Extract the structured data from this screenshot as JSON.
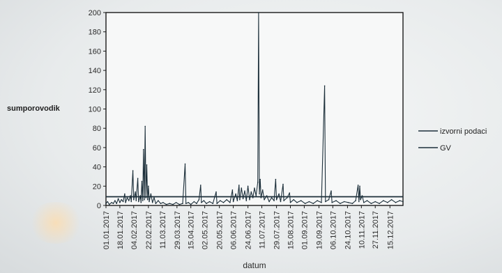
{
  "chart_data": {
    "type": "line",
    "xlabel": "datum",
    "ylabel": "sumporovodik",
    "ylim": [
      0,
      200
    ],
    "yticks": [
      0,
      20,
      40,
      60,
      80,
      100,
      120,
      140,
      160,
      180,
      200
    ],
    "xlim": [
      "2017-01-01",
      "2017-12-31"
    ],
    "x_tick_labels": [
      "01.01.2017",
      "18.01.2017",
      "04.02.2017",
      "22.02.2017",
      "11.03.2017",
      "29.03.2017",
      "15.04.2017",
      "02.05.2017",
      "20.05.2017",
      "06.06.2017",
      "24.06.2017",
      "11.07.2017",
      "29.07.2017",
      "15.08.2017",
      "01.09.2017",
      "19.09.2017",
      "06.10.2017",
      "24.10.2017",
      "10.11.2017",
      "27.11.2017",
      "15.12.2017"
    ],
    "x_tick_dates": [
      "2017-01-01",
      "2017-01-18",
      "2017-02-04",
      "2017-02-22",
      "2017-03-11",
      "2017-03-29",
      "2017-04-15",
      "2017-05-02",
      "2017-05-20",
      "2017-06-06",
      "2017-06-24",
      "2017-07-11",
      "2017-07-29",
      "2017-08-15",
      "2017-09-01",
      "2017-09-19",
      "2017-10-06",
      "2017-10-24",
      "2017-11-10",
      "2017-11-27",
      "2017-12-15"
    ],
    "legend_position": "right",
    "series": [
      {
        "name": "izvorni podaci",
        "color": "#1c2f3a",
        "points": [
          [
            "2017-01-01",
            2
          ],
          [
            "2017-01-03",
            4
          ],
          [
            "2017-01-05",
            1
          ],
          [
            "2017-01-08",
            3
          ],
          [
            "2017-01-10",
            2
          ],
          [
            "2017-01-12",
            5
          ],
          [
            "2017-01-14",
            2
          ],
          [
            "2017-01-16",
            7
          ],
          [
            "2017-01-18",
            3
          ],
          [
            "2017-01-20",
            6
          ],
          [
            "2017-01-22",
            4
          ],
          [
            "2017-01-24",
            12
          ],
          [
            "2017-01-25",
            3
          ],
          [
            "2017-01-27",
            8
          ],
          [
            "2017-01-29",
            5
          ],
          [
            "2017-01-31",
            10
          ],
          [
            "2017-02-01",
            4
          ],
          [
            "2017-02-03",
            36
          ],
          [
            "2017-02-04",
            6
          ],
          [
            "2017-02-06",
            14
          ],
          [
            "2017-02-07",
            5
          ],
          [
            "2017-02-09",
            28
          ],
          [
            "2017-02-10",
            4
          ],
          [
            "2017-02-12",
            10
          ],
          [
            "2017-02-13",
            3
          ],
          [
            "2017-02-14",
            25
          ],
          [
            "2017-02-15",
            5
          ],
          [
            "2017-02-16",
            58
          ],
          [
            "2017-02-17",
            6
          ],
          [
            "2017-02-18",
            82
          ],
          [
            "2017-02-19",
            8
          ],
          [
            "2017-02-20",
            42
          ],
          [
            "2017-02-21",
            6
          ],
          [
            "2017-02-22",
            20
          ],
          [
            "2017-02-23",
            4
          ],
          [
            "2017-02-25",
            12
          ],
          [
            "2017-02-27",
            3
          ],
          [
            "2017-03-01",
            8
          ],
          [
            "2017-03-03",
            2
          ],
          [
            "2017-03-06",
            5
          ],
          [
            "2017-03-09",
            2
          ],
          [
            "2017-03-12",
            3
          ],
          [
            "2017-03-16",
            1
          ],
          [
            "2017-03-20",
            2
          ],
          [
            "2017-03-24",
            1
          ],
          [
            "2017-03-28",
            3
          ],
          [
            "2017-04-01",
            1
          ],
          [
            "2017-04-05",
            2
          ],
          [
            "2017-04-08",
            43
          ],
          [
            "2017-04-09",
            2
          ],
          [
            "2017-04-12",
            3
          ],
          [
            "2017-04-15",
            1
          ],
          [
            "2017-04-19",
            4
          ],
          [
            "2017-04-22",
            2
          ],
          [
            "2017-04-25",
            6
          ],
          [
            "2017-04-27",
            21
          ],
          [
            "2017-04-28",
            3
          ],
          [
            "2017-05-01",
            5
          ],
          [
            "2017-05-04",
            2
          ],
          [
            "2017-05-08",
            4
          ],
          [
            "2017-05-12",
            2
          ],
          [
            "2017-05-16",
            14
          ],
          [
            "2017-05-17",
            2
          ],
          [
            "2017-05-21",
            5
          ],
          [
            "2017-05-25",
            3
          ],
          [
            "2017-05-29",
            6
          ],
          [
            "2017-06-02",
            3
          ],
          [
            "2017-06-05",
            16
          ],
          [
            "2017-06-06",
            4
          ],
          [
            "2017-06-09",
            12
          ],
          [
            "2017-06-11",
            5
          ],
          [
            "2017-06-13",
            21
          ],
          [
            "2017-06-14",
            6
          ],
          [
            "2017-06-16",
            18
          ],
          [
            "2017-06-18",
            7
          ],
          [
            "2017-06-20",
            15
          ],
          [
            "2017-06-22",
            5
          ],
          [
            "2017-06-24",
            20
          ],
          [
            "2017-06-26",
            6
          ],
          [
            "2017-06-28",
            14
          ],
          [
            "2017-06-30",
            8
          ],
          [
            "2017-07-02",
            18
          ],
          [
            "2017-07-04",
            10
          ],
          [
            "2017-07-06",
            24
          ],
          [
            "2017-07-07",
            200
          ],
          [
            "2017-07-08",
            12
          ],
          [
            "2017-07-09",
            27
          ],
          [
            "2017-07-10",
            8
          ],
          [
            "2017-07-12",
            16
          ],
          [
            "2017-07-14",
            6
          ],
          [
            "2017-07-17",
            10
          ],
          [
            "2017-07-20",
            4
          ],
          [
            "2017-07-23",
            8
          ],
          [
            "2017-07-26",
            5
          ],
          [
            "2017-07-28",
            27
          ],
          [
            "2017-07-29",
            6
          ],
          [
            "2017-08-01",
            12
          ],
          [
            "2017-08-03",
            4
          ],
          [
            "2017-08-06",
            22
          ],
          [
            "2017-08-07",
            5
          ],
          [
            "2017-08-11",
            8
          ],
          [
            "2017-08-14",
            13
          ],
          [
            "2017-08-15",
            3
          ],
          [
            "2017-08-19",
            6
          ],
          [
            "2017-08-23",
            3
          ],
          [
            "2017-08-28",
            5
          ],
          [
            "2017-09-02",
            2
          ],
          [
            "2017-09-07",
            4
          ],
          [
            "2017-09-12",
            2
          ],
          [
            "2017-09-17",
            5
          ],
          [
            "2017-09-22",
            3
          ],
          [
            "2017-09-26",
            124
          ],
          [
            "2017-09-27",
            4
          ],
          [
            "2017-10-01",
            6
          ],
          [
            "2017-10-04",
            15
          ],
          [
            "2017-10-05",
            3
          ],
          [
            "2017-10-10",
            5
          ],
          [
            "2017-10-15",
            2
          ],
          [
            "2017-10-20",
            4
          ],
          [
            "2017-10-25",
            3
          ],
          [
            "2017-10-30",
            2
          ],
          [
            "2017-11-03",
            5
          ],
          [
            "2017-11-06",
            21
          ],
          [
            "2017-11-07",
            4
          ],
          [
            "2017-11-08",
            20
          ],
          [
            "2017-11-09",
            6
          ],
          [
            "2017-11-11",
            10
          ],
          [
            "2017-11-13",
            3
          ],
          [
            "2017-11-17",
            5
          ],
          [
            "2017-11-22",
            2
          ],
          [
            "2017-11-27",
            4
          ],
          [
            "2017-12-02",
            2
          ],
          [
            "2017-12-07",
            5
          ],
          [
            "2017-12-12",
            3
          ],
          [
            "2017-12-17",
            6
          ],
          [
            "2017-12-22",
            3
          ],
          [
            "2017-12-27",
            5
          ],
          [
            "2017-12-31",
            4
          ]
        ]
      },
      {
        "name": "GV",
        "color": "#1c2f3a",
        "points": [
          [
            "2017-01-01",
            9
          ],
          [
            "2017-12-31",
            9
          ]
        ]
      }
    ]
  }
}
